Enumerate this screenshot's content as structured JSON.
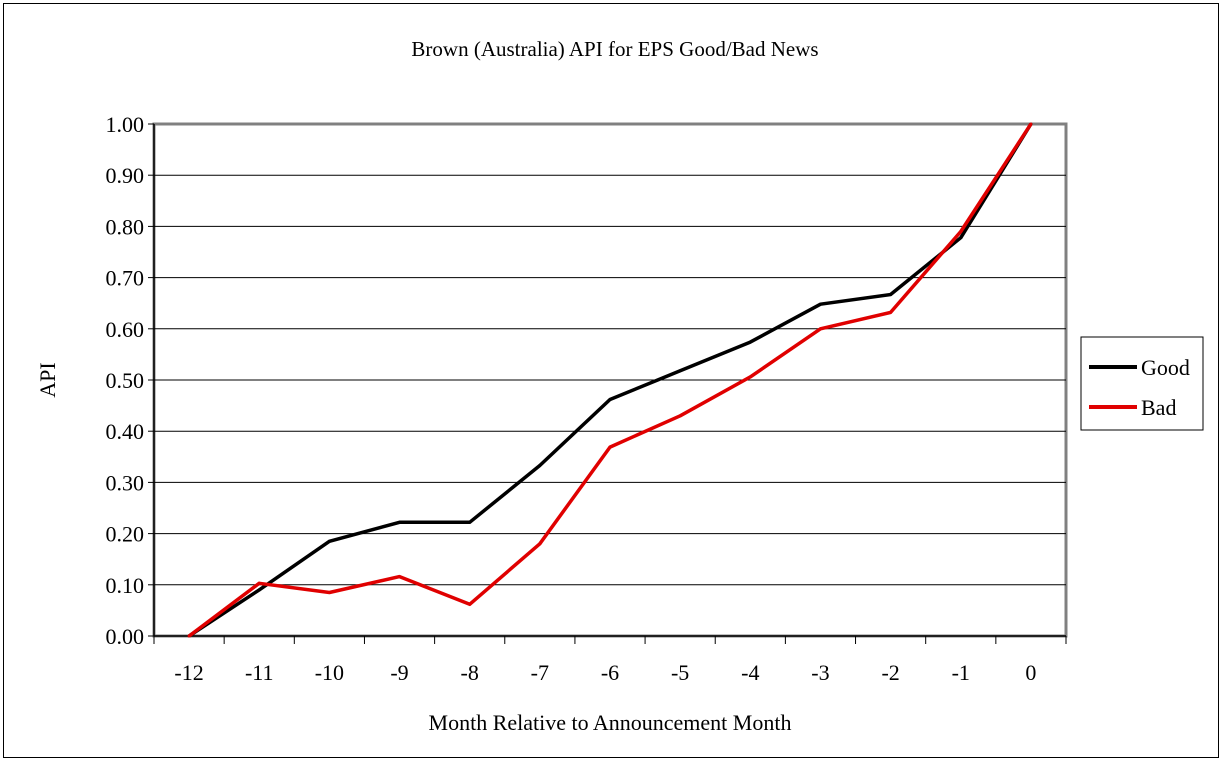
{
  "chart_data": {
    "type": "line",
    "title": "Brown (Australia) API for EPS Good/Bad News",
    "xlabel": "Month Relative to Announcement Month",
    "ylabel": "API",
    "categories": [
      "-12",
      "-11",
      "-10",
      "-9",
      "-8",
      "-7",
      "-6",
      "-5",
      "-4",
      "-3",
      "-2",
      "-1",
      "0"
    ],
    "yticks": [
      "0.00",
      "0.10",
      "0.20",
      "0.30",
      "0.40",
      "0.50",
      "0.60",
      "0.70",
      "0.80",
      "0.90",
      "1.00"
    ],
    "ylim": [
      0,
      1
    ],
    "grid": true,
    "legend_position": "right",
    "series": [
      {
        "name": "Good",
        "color": "#000000",
        "values": [
          0.0,
          0.09,
          0.185,
          0.222,
          0.222,
          0.333,
          0.462,
          0.518,
          0.574,
          0.648,
          0.667,
          0.778,
          1.0
        ]
      },
      {
        "name": "Bad",
        "color": "#e00000",
        "values": [
          0.0,
          0.103,
          0.085,
          0.116,
          0.062,
          0.18,
          0.369,
          0.43,
          0.506,
          0.6,
          0.632,
          0.79,
          1.0
        ]
      }
    ]
  }
}
